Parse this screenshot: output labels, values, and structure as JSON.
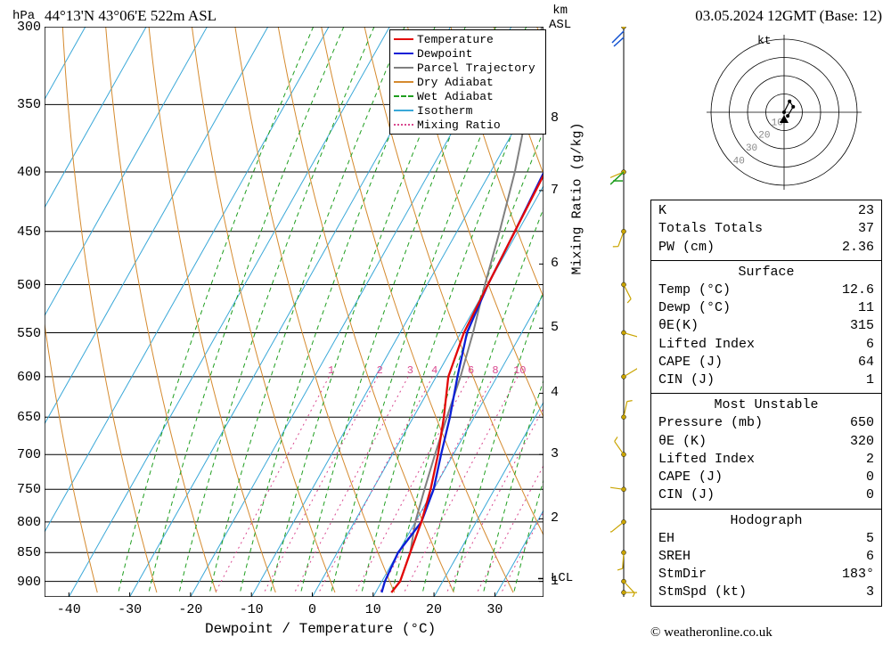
{
  "title": "44°13'N 43°06'E 522m ASL",
  "date_title": "03.05.2024 12GMT (Base: 12)",
  "copyright": "© weatheronline.co.uk",
  "axes": {
    "y_left_title": "hPa",
    "y_right_top_title": "km\nASL",
    "y_right_title": "Mixing Ratio (g/kg)",
    "x_title": "Dewpoint / Temperature (°C)",
    "y_left_ticks": [
      300,
      350,
      400,
      450,
      500,
      550,
      600,
      650,
      700,
      750,
      800,
      850,
      900
    ],
    "y_right_ticks": [
      1,
      2,
      3,
      4,
      5,
      6,
      7,
      8
    ],
    "x_ticks": [
      -40,
      -30,
      -20,
      -10,
      0,
      10,
      20,
      30
    ],
    "xlim": [
      -44,
      38
    ],
    "ylim_hpa": [
      928,
      300
    ],
    "lcl_label": "LCL"
  },
  "legend": [
    {
      "label": "Temperature",
      "color": "#e30808",
      "dash": "none"
    },
    {
      "label": "Dewpoint",
      "color": "#0b1fd6",
      "dash": "none"
    },
    {
      "label": "Parcel Trajectory",
      "color": "#808080",
      "dash": "none"
    },
    {
      "label": "Dry Adiabat",
      "color": "#d58a2e",
      "dash": "none"
    },
    {
      "label": "Wet Adiabat",
      "color": "#1f9e1f",
      "dash": "4,3"
    },
    {
      "label": "Isotherm",
      "color": "#3aa8d8",
      "dash": "none"
    },
    {
      "label": "Mixing Ratio",
      "color": "#d9488f",
      "dash": "2,3"
    }
  ],
  "plot_style": {
    "bg": "#ffffff",
    "grid_color": "#000000",
    "isotherm_color": "#3aa8d8",
    "dry_adiabat_color": "#d58a2e",
    "wet_adiabat_color": "#1f9e1f",
    "mixing_ratio_color": "#d9488f",
    "temp_color": "#e30808",
    "dewp_color": "#0b1fd6",
    "parcel_color": "#808080",
    "line_width_main": 2.2,
    "line_width_bg": 1.0,
    "font_family": "serif"
  },
  "mixing_ratio_labels": [
    1,
    2,
    3,
    4,
    6,
    8,
    10,
    15,
    20,
    25
  ],
  "soundings": {
    "pressures": [
      920,
      900,
      850,
      800,
      750,
      700,
      650,
      600,
      550,
      500,
      450,
      400,
      350,
      300
    ],
    "temperature": [
      12.6,
      13,
      12,
      11,
      9.5,
      7.5,
      5,
      2,
      0.5,
      0,
      -0.5,
      -1,
      -1.5,
      -2
    ],
    "dewpoint": [
      11,
      10.5,
      10,
      11,
      10,
      8,
      6,
      3.5,
      1,
      0,
      -0.5,
      -1.2,
      -1.8,
      -2.4
    ],
    "parcel": [
      12.6,
      13,
      12,
      10,
      8.5,
      7,
      5.5,
      4,
      2,
      -0.5,
      -3,
      -6,
      -10,
      -15
    ]
  },
  "indices": {
    "top": [
      {
        "k": "K",
        "v": "23"
      },
      {
        "k": "Totals Totals",
        "v": "37"
      },
      {
        "k": "PW (cm)",
        "v": "2.36"
      }
    ],
    "surface_head": "Surface",
    "surface": [
      {
        "k": "Temp (°C)",
        "v": "12.6"
      },
      {
        "k": "Dewp (°C)",
        "v": "11"
      },
      {
        "k": "θE(K)",
        "v": "315"
      },
      {
        "k": "Lifted Index",
        "v": "6"
      },
      {
        "k": "CAPE (J)",
        "v": "64"
      },
      {
        "k": "CIN (J)",
        "v": "1"
      }
    ],
    "mu_head": "Most Unstable",
    "mu": [
      {
        "k": "Pressure (mb)",
        "v": "650"
      },
      {
        "k": "θE (K)",
        "v": "320"
      },
      {
        "k": "Lifted Index",
        "v": "2"
      },
      {
        "k": "CAPE (J)",
        "v": "0"
      },
      {
        "k": "CIN (J)",
        "v": "0"
      }
    ],
    "hodo_head": "Hodograph",
    "hodo": [
      {
        "k": "EH",
        "v": "5"
      },
      {
        "k": "SREH",
        "v": "6"
      },
      {
        "k": "StmDir",
        "v": "183°"
      },
      {
        "k": "StmSpd (kt)",
        "v": "3"
      }
    ]
  },
  "hodograph": {
    "rings": [
      10,
      20,
      30,
      40
    ],
    "ring_labels": [
      "10",
      "20",
      "30",
      "40"
    ],
    "kt_label": "kt",
    "track": [
      [
        0,
        0
      ],
      [
        3,
        6
      ],
      [
        5,
        3
      ],
      [
        2,
        -2
      ]
    ],
    "marker": "triangle"
  },
  "wind_barbs": {
    "levels": [
      920,
      900,
      850,
      800,
      750,
      700,
      650,
      600,
      550,
      500,
      450,
      400,
      300
    ],
    "color": "#c9a400"
  }
}
